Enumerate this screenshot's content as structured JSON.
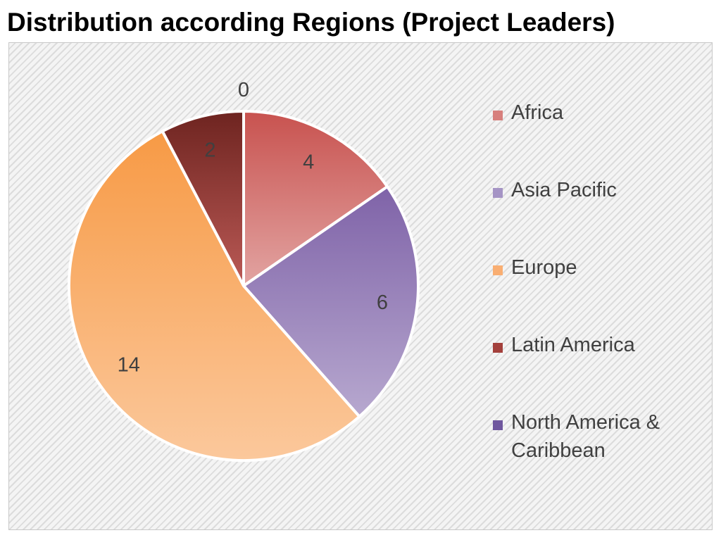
{
  "chart_data": {
    "type": "pie",
    "title": "Distribution according Regions (Project Leaders)",
    "categories": [
      "Africa",
      "Asia Pacific",
      "Europe",
      "Latin America",
      "North America & Caribbean"
    ],
    "values": [
      4,
      6,
      14,
      2,
      0
    ],
    "data_labels": [
      "4",
      "6",
      "14",
      "2",
      "0"
    ],
    "start_angle_deg": 0,
    "direction": "clockwise",
    "legend": "right",
    "grid": false,
    "colors": [
      {
        "top": "#c8524f",
        "bottom": "#e2a4a2"
      },
      {
        "top": "#7f63a8",
        "bottom": "#b7a8cf"
      },
      {
        "top": "#f79a45",
        "bottom": "#fbc89c"
      },
      {
        "top": "#6e2420",
        "bottom": "#bb5a56"
      },
      {
        "top": "#5d4792",
        "bottom": "#8f7cbd"
      }
    ],
    "legend_colors": [
      "#d77f7c",
      "#a594c5",
      "#f9ae72",
      "#a3403c",
      "#6f579e"
    ]
  }
}
